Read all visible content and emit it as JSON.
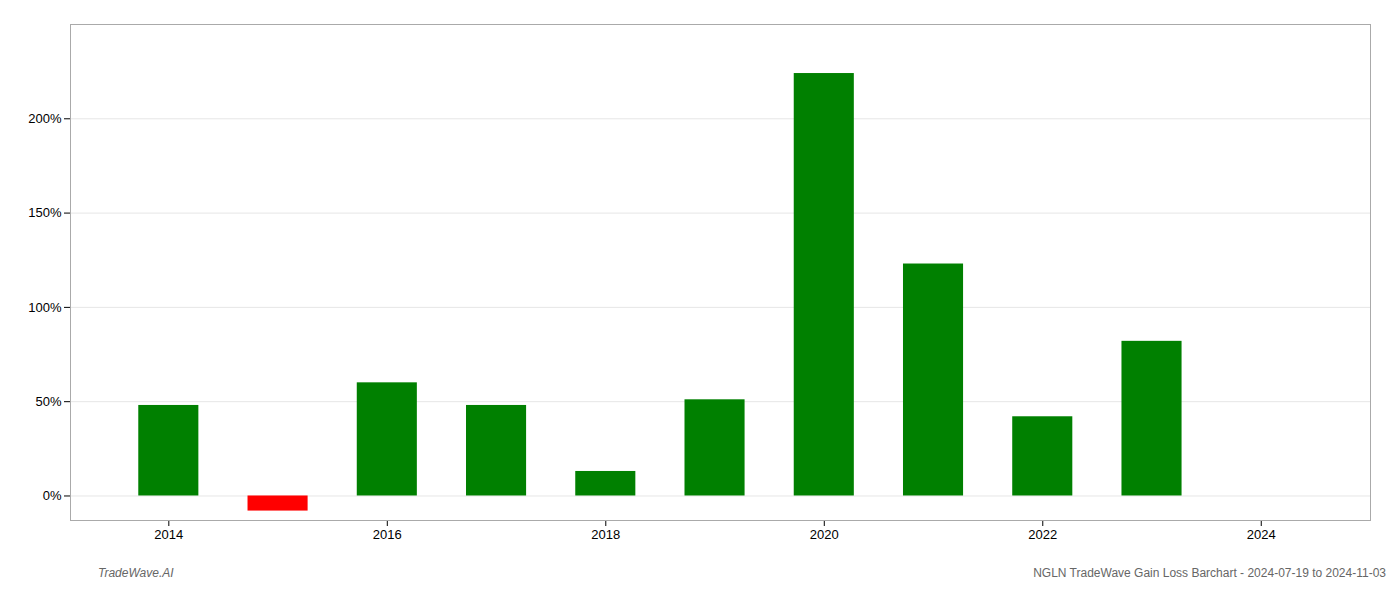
{
  "chart_data": {
    "type": "bar",
    "x": [
      2014,
      2015,
      2016,
      2017,
      2018,
      2019,
      2020,
      2021,
      2022,
      2023
    ],
    "values": [
      0.48,
      -0.08,
      0.6,
      0.48,
      0.13,
      0.51,
      2.24,
      1.23,
      0.42,
      0.82
    ],
    "colors": [
      "#008000",
      "#ff0000",
      "#008000",
      "#008000",
      "#008000",
      "#008000",
      "#008000",
      "#008000",
      "#008000",
      "#008000"
    ],
    "xlim": [
      2013.1,
      2025.0
    ],
    "xticks": [
      2014,
      2016,
      2018,
      2020,
      2022,
      2024
    ],
    "ylim": [
      -0.13,
      2.5
    ],
    "yticks": [
      {
        "value": 0.0,
        "label": "0%"
      },
      {
        "value": 0.5,
        "label": "50%"
      },
      {
        "value": 1.0,
        "label": "100%"
      },
      {
        "value": 1.5,
        "label": "150%"
      },
      {
        "value": 2.0,
        "label": "200%"
      }
    ],
    "grid": true,
    "annotations": [
      "TradeWave.AI",
      "NGLN TradeWave Gain Loss Barchart - 2024-07-19 to 2024-11-03"
    ]
  }
}
